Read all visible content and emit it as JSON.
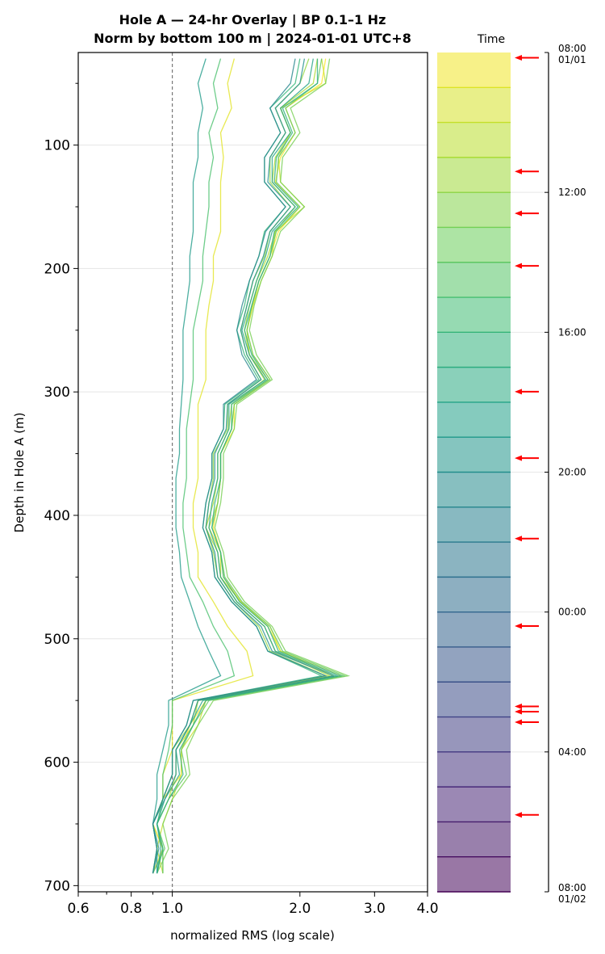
{
  "chart_data": {
    "type": "line",
    "title_line1": "Hole A — 24-hr Overlay  |  BP 0.1–1 Hz",
    "title_line2": "Norm by bottom 100 m  |  2024-01-01 UTC+8",
    "xlabel": "normalized RMS  (log scale)",
    "ylabel": "Depth in Hole A (m)",
    "x_scale": "log",
    "xlim": [
      0.6,
      4.0
    ],
    "ylim": [
      705,
      25
    ],
    "x_ticks": [
      {
        "value": 0.6,
        "label": "0.6"
      },
      {
        "value": 0.8,
        "label": "0.8"
      },
      {
        "value": 1.0,
        "label": "1.0"
      },
      {
        "value": 2.0,
        "label": "2.0"
      },
      {
        "value": 3.0,
        "label": "3.0"
      },
      {
        "value": 4.0,
        "label": "4.0"
      }
    ],
    "y_ticks": [
      {
        "value": 100,
        "label": "100"
      },
      {
        "value": 200,
        "label": "200"
      },
      {
        "value": 300,
        "label": "300"
      },
      {
        "value": 400,
        "label": "400"
      },
      {
        "value": 500,
        "label": "500"
      },
      {
        "value": 600,
        "label": "600"
      },
      {
        "value": 700,
        "label": "700"
      }
    ],
    "reference_line_x": 1.0,
    "grid": "horizontal",
    "colormap": "viridis",
    "depths": [
      30,
      50,
      70,
      90,
      110,
      130,
      150,
      170,
      190,
      210,
      230,
      250,
      270,
      290,
      310,
      330,
      350,
      370,
      390,
      410,
      430,
      450,
      470,
      490,
      510,
      530,
      550,
      570,
      590,
      610,
      630,
      650,
      670,
      690
    ],
    "series": [
      {
        "time": "08:00",
        "values": [
          2.3,
          2.25,
          1.85,
          1.95,
          1.8,
          1.75,
          2.0,
          1.78,
          1.7,
          1.6,
          1.55,
          1.5,
          1.55,
          1.7,
          1.4,
          1.4,
          1.3,
          1.3,
          1.28,
          1.25,
          1.3,
          1.32,
          1.45,
          1.7,
          1.8,
          2.5,
          1.2,
          1.1,
          1.05,
          1.05,
          0.95,
          0.9,
          0.95,
          0.9
        ]
      },
      {
        "time": "09:00",
        "values": [
          1.4,
          1.35,
          1.38,
          1.3,
          1.32,
          1.3,
          1.3,
          1.3,
          1.25,
          1.25,
          1.22,
          1.2,
          1.2,
          1.2,
          1.15,
          1.15,
          1.15,
          1.15,
          1.12,
          1.12,
          1.15,
          1.15,
          1.25,
          1.35,
          1.5,
          1.55,
          1.0,
          1.0,
          1.0,
          0.95,
          0.95,
          0.9,
          0.95,
          0.95
        ]
      },
      {
        "time": "10:00",
        "values": [
          2.25,
          2.3,
          1.8,
          1.9,
          1.78,
          1.8,
          2.05,
          1.75,
          1.72,
          1.62,
          1.55,
          1.5,
          1.52,
          1.68,
          1.4,
          1.38,
          1.3,
          1.3,
          1.28,
          1.22,
          1.3,
          1.3,
          1.45,
          1.68,
          1.8,
          2.4,
          1.2,
          1.15,
          1.05,
          1.05,
          1.0,
          0.95,
          0.92,
          0.95
        ]
      },
      {
        "time": "11:00",
        "values": [
          2.2,
          2.15,
          1.8,
          1.9,
          1.75,
          1.72,
          1.95,
          1.75,
          1.68,
          1.58,
          1.52,
          1.48,
          1.52,
          1.65,
          1.38,
          1.36,
          1.28,
          1.28,
          1.25,
          1.2,
          1.28,
          1.3,
          1.42,
          1.65,
          1.75,
          2.35,
          1.15,
          1.12,
          1.02,
          1.02,
          0.98,
          0.92,
          0.95,
          0.92
        ]
      },
      {
        "time": "12:00",
        "values": [
          2.1,
          2.0,
          1.75,
          1.85,
          1.7,
          1.7,
          1.9,
          1.7,
          1.65,
          1.55,
          1.5,
          1.45,
          1.5,
          1.62,
          1.35,
          1.35,
          1.25,
          1.25,
          1.22,
          1.2,
          1.25,
          1.28,
          1.4,
          1.6,
          1.7,
          2.3,
          1.15,
          1.1,
          1.0,
          1.0,
          0.95,
          0.9,
          0.92,
          0.9
        ]
      },
      {
        "time": "13:00",
        "values": [
          2.35,
          2.3,
          1.9,
          2.0,
          1.82,
          1.8,
          2.05,
          1.8,
          1.72,
          1.62,
          1.56,
          1.52,
          1.58,
          1.72,
          1.42,
          1.4,
          1.32,
          1.32,
          1.3,
          1.26,
          1.32,
          1.35,
          1.48,
          1.72,
          1.85,
          2.6,
          1.25,
          1.15,
          1.08,
          1.1,
          1.0,
          0.95,
          0.98,
          0.92
        ]
      },
      {
        "time": "14:00",
        "values": [
          2.25,
          2.2,
          1.85,
          1.95,
          1.78,
          1.76,
          2.0,
          1.76,
          1.7,
          1.6,
          1.54,
          1.5,
          1.55,
          1.7,
          1.4,
          1.38,
          1.3,
          1.3,
          1.28,
          1.24,
          1.3,
          1.33,
          1.46,
          1.7,
          1.82,
          2.55,
          1.22,
          1.12,
          1.05,
          1.08,
          0.98,
          0.92,
          0.96,
          0.9
        ]
      },
      {
        "time": "15:00",
        "values": [
          1.3,
          1.25,
          1.28,
          1.22,
          1.25,
          1.22,
          1.22,
          1.2,
          1.18,
          1.18,
          1.15,
          1.12,
          1.12,
          1.12,
          1.1,
          1.08,
          1.08,
          1.08,
          1.06,
          1.06,
          1.08,
          1.1,
          1.18,
          1.25,
          1.35,
          1.4,
          1.0,
          1.0,
          0.98,
          0.95,
          0.95,
          0.92,
          0.95,
          0.95
        ]
      },
      {
        "time": "16:00",
        "values": [
          2.0,
          1.95,
          1.7,
          1.8,
          1.65,
          1.65,
          1.85,
          1.65,
          1.6,
          1.52,
          1.48,
          1.42,
          1.48,
          1.6,
          1.33,
          1.32,
          1.24,
          1.24,
          1.2,
          1.18,
          1.24,
          1.26,
          1.38,
          1.58,
          1.68,
          2.25,
          1.12,
          1.08,
          1.0,
          1.0,
          0.95,
          0.9,
          0.92,
          0.9
        ]
      },
      {
        "time": "17:00",
        "values": [
          2.2,
          2.2,
          1.82,
          1.92,
          1.76,
          1.74,
          1.98,
          1.74,
          1.7,
          1.6,
          1.54,
          1.48,
          1.54,
          1.68,
          1.38,
          1.38,
          1.3,
          1.3,
          1.26,
          1.24,
          1.3,
          1.32,
          1.44,
          1.68,
          1.78,
          2.5,
          1.2,
          1.12,
          1.04,
          1.06,
          0.98,
          0.92,
          0.95,
          0.92
        ]
      },
      {
        "time": "18:00",
        "values": [
          2.15,
          2.1,
          1.8,
          1.9,
          1.72,
          1.72,
          1.95,
          1.72,
          1.66,
          1.58,
          1.52,
          1.46,
          1.52,
          1.66,
          1.36,
          1.36,
          1.28,
          1.28,
          1.24,
          1.22,
          1.28,
          1.3,
          1.42,
          1.65,
          1.75,
          2.45,
          1.18,
          1.1,
          1.02,
          1.04,
          0.96,
          0.92,
          0.94,
          0.92
        ]
      },
      {
        "time": "19:00",
        "values": [
          1.2,
          1.15,
          1.18,
          1.15,
          1.15,
          1.12,
          1.12,
          1.12,
          1.1,
          1.1,
          1.08,
          1.06,
          1.06,
          1.06,
          1.05,
          1.04,
          1.04,
          1.02,
          1.02,
          1.02,
          1.04,
          1.05,
          1.1,
          1.15,
          1.22,
          1.3,
          0.98,
          0.98,
          0.95,
          0.92,
          0.92,
          0.9,
          0.92,
          0.92
        ]
      },
      {
        "time": "20:00",
        "values": [
          2.05,
          2.0,
          1.75,
          1.85,
          1.7,
          1.68,
          1.9,
          1.7,
          1.64,
          1.55,
          1.5,
          1.45,
          1.5,
          1.62,
          1.35,
          1.34,
          1.26,
          1.26,
          1.22,
          1.2,
          1.26,
          1.28,
          1.4,
          1.62,
          1.72,
          2.4,
          1.15,
          1.1,
          1.02,
          1.02,
          0.96,
          0.9,
          0.93,
          0.9
        ]
      },
      {
        "time": "21:00",
        "values": [
          1.95,
          1.9,
          1.7,
          1.8,
          1.65,
          1.65,
          1.85,
          1.66,
          1.6,
          1.52,
          1.46,
          1.42,
          1.46,
          1.58,
          1.32,
          1.32,
          1.24,
          1.24,
          1.2,
          1.18,
          1.24,
          1.26,
          1.38,
          1.58,
          1.68,
          2.3,
          1.12,
          1.08,
          1.0,
          1.0,
          0.95,
          0.9,
          0.92,
          0.9
        ]
      }
    ]
  },
  "colorbar": {
    "header": "Time",
    "ticks": [
      {
        "hours": 0,
        "label_line1": "08:00",
        "label_line2": "01/01"
      },
      {
        "hours": 4,
        "label_line1": "12:00",
        "label_line2": ""
      },
      {
        "hours": 8,
        "label_line1": "16:00",
        "label_line2": ""
      },
      {
        "hours": 12,
        "label_line1": "20:00",
        "label_line2": ""
      },
      {
        "hours": 16,
        "label_line1": "00:00",
        "label_line2": ""
      },
      {
        "hours": 20,
        "label_line1": "04:00",
        "label_line2": ""
      },
      {
        "hours": 24,
        "label_line1": "08:00",
        "label_line2": "01/02"
      }
    ],
    "bands": 24,
    "arrow_color": "#ff0000",
    "arrow_hours": [
      0.15,
      3.4,
      4.6,
      6.1,
      9.7,
      11.6,
      13.9,
      16.4,
      18.7,
      18.85,
      19.15,
      21.8
    ]
  }
}
